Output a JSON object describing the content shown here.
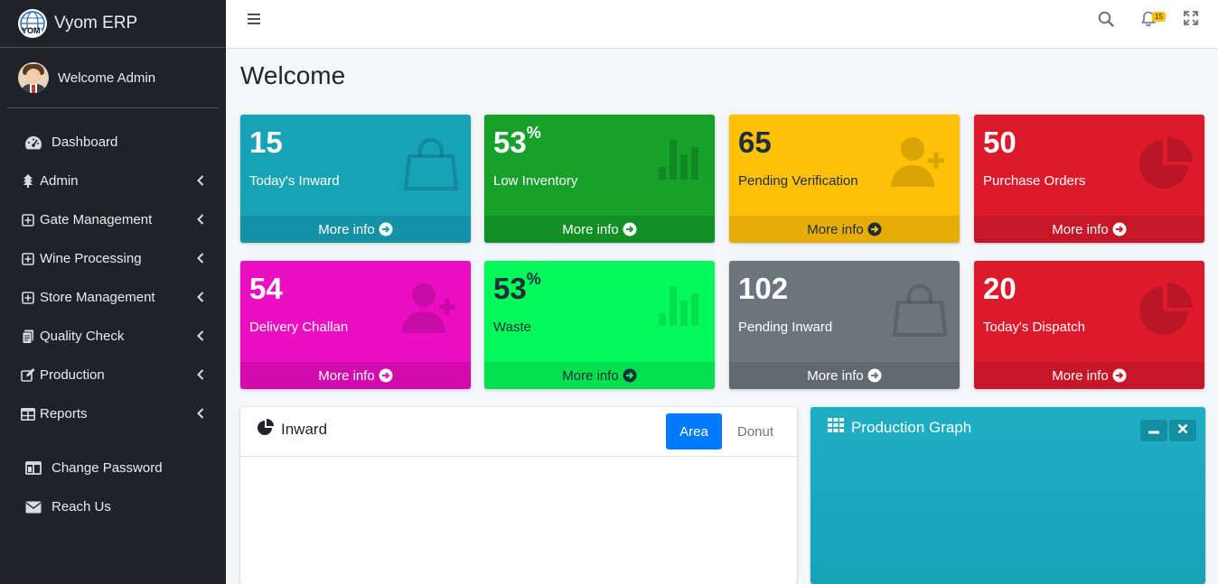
{
  "brand": {
    "name": "Vyom ERP",
    "logo_text": "YOM"
  },
  "user": {
    "welcome": "Welcome Admin"
  },
  "sidebar": {
    "items": [
      {
        "label": "Dashboard",
        "icon": "tachometer-icon"
      },
      {
        "label": "Admin",
        "icon": "tree-icon"
      },
      {
        "label": "Gate Management",
        "icon": "plus-square-icon"
      },
      {
        "label": "Wine Processing",
        "icon": "plus-square-icon"
      },
      {
        "label": "Store Management",
        "icon": "plus-square-icon"
      },
      {
        "label": "Quality Check",
        "icon": "file-icon"
      },
      {
        "label": "Production",
        "icon": "edit-icon"
      },
      {
        "label": "Reports",
        "icon": "table-icon"
      },
      {
        "label": "Change Password",
        "icon": "columns-icon"
      },
      {
        "label": "Reach Us",
        "icon": "envelope-icon"
      }
    ]
  },
  "topbar": {
    "notification_count": "15"
  },
  "page": {
    "title": "Welcome"
  },
  "boxes": [
    {
      "value": "15",
      "suffix": "",
      "label": "Today's Inward",
      "footer": "More info",
      "color": "#17a2b8",
      "icon": "shopping-bag-icon"
    },
    {
      "value": "53",
      "suffix": "%",
      "label": "Low Inventory",
      "footer": "More info",
      "color": "#28a745",
      "icon": "bar-chart-icon"
    },
    {
      "value": "65",
      "suffix": "",
      "label": "Pending Verification",
      "footer": "More info",
      "color": "#ffc107",
      "icon": "user-plus-icon"
    },
    {
      "value": "50",
      "suffix": "",
      "label": "Purchase Orders",
      "footer": "More info",
      "color": "#dc3545",
      "icon": "pie-chart-icon"
    },
    {
      "value": "54",
      "suffix": "",
      "label": "Delivery Challan",
      "footer": "More info",
      "color": "#f012be",
      "icon": "user-plus-icon"
    },
    {
      "value": "53",
      "suffix": "%",
      "label": "Waste",
      "footer": "More info",
      "color": "#01ff70",
      "icon": "bar-chart-icon"
    },
    {
      "value": "102",
      "suffix": "",
      "label": "Pending Inward",
      "footer": "More info",
      "color": "#6c757d",
      "icon": "shopping-bag-icon"
    },
    {
      "value": "20",
      "suffix": "",
      "label": "Today's Dispatch",
      "footer": "More info",
      "color": "#dc3545",
      "icon": "pie-chart-icon"
    }
  ],
  "inward_card": {
    "title": "Inward",
    "tabs": [
      "Area",
      "Donut"
    ],
    "active_tab": "Area"
  },
  "production_card": {
    "title": "Production Graph"
  }
}
